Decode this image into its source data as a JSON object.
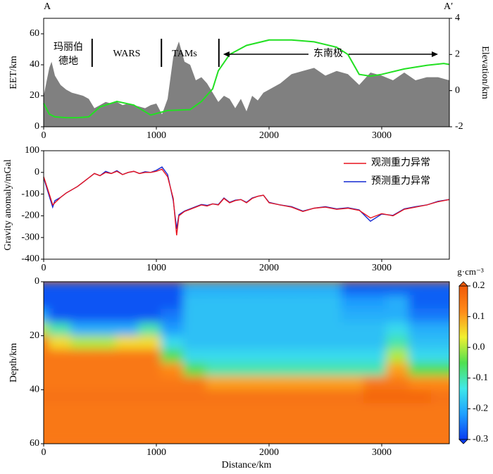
{
  "chart_data": [
    {
      "type": "area",
      "ylabel": "EET/km",
      "y2label": "Elevation/km",
      "end_labels": [
        "A",
        "A′"
      ],
      "regions": [
        "玛丽伯",
        "德地",
        "WARS",
        "TAMs",
        "东南极"
      ],
      "region_boundaries": [
        430,
        1045,
        1555
      ],
      "xlim": [
        0,
        3600
      ],
      "xticks": [
        0,
        1000,
        2000,
        3000
      ],
      "ylim": [
        0,
        70
      ],
      "yticks": [
        0,
        20,
        40,
        60
      ],
      "y2lim": [
        -2,
        4
      ],
      "y2ticks": [
        -2,
        0,
        2,
        4
      ],
      "series": [
        {
          "color": "#808080",
          "x": [
            0,
            50,
            70,
            100,
            150,
            200,
            250,
            300,
            350,
            400,
            450,
            500,
            550,
            600,
            650,
            700,
            750,
            800,
            850,
            900,
            950,
            1000,
            1050,
            1100,
            1150,
            1200,
            1250,
            1300,
            1350,
            1400,
            1450,
            1500,
            1550,
            1600,
            1650,
            1700,
            1750,
            1800,
            1850,
            1900,
            1950,
            2000,
            2100,
            2200,
            2300,
            2400,
            2500,
            2600,
            2700,
            2800,
            2900,
            3000,
            3100,
            3200,
            3300,
            3400,
            3500,
            3600
          ],
          "values": [
            20,
            38,
            42,
            33,
            27,
            24,
            22,
            21,
            20,
            18,
            12,
            14,
            16,
            15,
            16,
            14,
            15,
            14,
            13,
            12,
            14,
            15,
            8,
            18,
            45,
            55,
            42,
            40,
            30,
            32,
            28,
            22,
            16,
            20,
            18,
            12,
            18,
            10,
            20,
            17,
            22,
            24,
            28,
            34,
            36,
            38,
            33,
            36,
            34,
            27,
            35,
            33,
            30,
            35,
            30,
            32,
            32,
            30
          ]
        },
        {
          "type": "line",
          "axis": "y2",
          "color": "#22e022",
          "x": [
            0,
            50,
            100,
            200,
            300,
            400,
            500,
            650,
            800,
            950,
            1100,
            1300,
            1400,
            1500,
            1550,
            1650,
            1800,
            2000,
            2200,
            2400,
            2600,
            2700,
            2800,
            2900,
            3000,
            3200,
            3400,
            3550,
            3600
          ],
          "values": [
            -0.7,
            -1.3,
            -1.45,
            -1.5,
            -1.5,
            -1.45,
            -0.9,
            -0.6,
            -0.8,
            -1.35,
            -1.1,
            -1.05,
            -0.6,
            0.1,
            1.1,
            2.0,
            2.5,
            2.8,
            2.8,
            2.7,
            2.4,
            2.0,
            0.9,
            0.8,
            0.9,
            1.2,
            1.4,
            1.5,
            1.45
          ]
        }
      ]
    },
    {
      "type": "line",
      "ylabel": "Gravity anomaly/mGal",
      "xlim": [
        0,
        3600
      ],
      "xticks": [
        0,
        1000,
        2000,
        3000
      ],
      "ylim": [
        -400,
        100
      ],
      "yticks": [
        -400,
        -300,
        -200,
        -100,
        0,
        100
      ],
      "legend": "upper right",
      "x": [
        0,
        50,
        80,
        100,
        150,
        200,
        250,
        300,
        350,
        400,
        450,
        500,
        550,
        600,
        650,
        700,
        750,
        800,
        850,
        900,
        950,
        1000,
        1050,
        1100,
        1150,
        1180,
        1200,
        1250,
        1300,
        1350,
        1400,
        1450,
        1500,
        1550,
        1600,
        1650,
        1700,
        1750,
        1800,
        1850,
        1900,
        1950,
        2000,
        2100,
        2200,
        2300,
        2400,
        2500,
        2600,
        2700,
        2800,
        2900,
        3000,
        3100,
        3200,
        3300,
        3400,
        3500,
        3600
      ],
      "series": [
        {
          "name": "观测重力异常",
          "color": "#e8141e",
          "values": [
            -20,
            -100,
            -150,
            -140,
            -115,
            -95,
            -80,
            -65,
            -45,
            -25,
            -5,
            -15,
            0,
            -5,
            5,
            -10,
            0,
            5,
            -5,
            0,
            0,
            5,
            15,
            -20,
            -120,
            -290,
            -200,
            -180,
            -170,
            -160,
            -150,
            -155,
            -145,
            -150,
            -120,
            -140,
            -130,
            -125,
            -140,
            -120,
            -110,
            -105,
            -140,
            -150,
            -160,
            -180,
            -165,
            -160,
            -170,
            -165,
            -175,
            -210,
            -190,
            -200,
            -170,
            -160,
            -150,
            -135,
            -125
          ]
        },
        {
          "name": "预测重力异常",
          "color": "#1428d2",
          "values": [
            -25,
            -110,
            -160,
            -130,
            -115,
            -95,
            -80,
            -65,
            -45,
            -25,
            -5,
            -15,
            5,
            -5,
            8,
            -10,
            0,
            5,
            -5,
            3,
            0,
            10,
            25,
            -10,
            -130,
            -260,
            -195,
            -178,
            -168,
            -158,
            -148,
            -152,
            -145,
            -148,
            -118,
            -138,
            -128,
            -125,
            -138,
            -118,
            -110,
            -105,
            -138,
            -150,
            -158,
            -178,
            -165,
            -158,
            -168,
            -163,
            -173,
            -225,
            -192,
            -198,
            -168,
            -158,
            -150,
            -133,
            -125
          ]
        }
      ]
    },
    {
      "type": "heatmap",
      "xlabel": "Distance/km",
      "ylabel": "Depth/km",
      "xlim": [
        0,
        3600
      ],
      "xticks": [
        0,
        1000,
        2000,
        3000
      ],
      "ylim": [
        0,
        60
      ],
      "y_inverted": true,
      "yticks": [
        0,
        20,
        40,
        60
      ],
      "x": [
        0,
        200,
        400,
        600,
        800,
        1000,
        1200,
        1400,
        1600,
        1800,
        2000,
        2200,
        2400,
        2600,
        2800,
        3000,
        3200,
        3400,
        3600
      ],
      "y": [
        2.5,
        7.5,
        12.5,
        17.5,
        22.5,
        27.5,
        32.5,
        37.5,
        42.5,
        47.5,
        52.5,
        57.5
      ],
      "values": [
        [
          -0.28,
          -0.28,
          -0.28,
          -0.28,
          -0.28,
          -0.28,
          -0.28,
          -0.2,
          -0.2,
          -0.2,
          -0.2,
          -0.2,
          -0.2,
          -0.2,
          -0.27,
          -0.27,
          -0.27,
          -0.27,
          -0.27
        ],
        [
          -0.28,
          -0.28,
          -0.28,
          -0.28,
          -0.28,
          -0.28,
          -0.28,
          -0.18,
          -0.18,
          -0.18,
          -0.18,
          -0.18,
          -0.18,
          -0.18,
          -0.22,
          -0.22,
          -0.2,
          -0.27,
          -0.27
        ],
        [
          -0.2,
          -0.28,
          -0.28,
          -0.28,
          -0.28,
          -0.28,
          -0.25,
          -0.18,
          -0.18,
          -0.18,
          -0.18,
          -0.18,
          -0.18,
          -0.18,
          -0.2,
          -0.2,
          -0.2,
          -0.25,
          -0.25
        ],
        [
          0,
          -0.1,
          -0.2,
          -0.2,
          -0.2,
          -0.1,
          -0.22,
          -0.18,
          -0.18,
          -0.18,
          -0.18,
          -0.18,
          -0.18,
          -0.18,
          -0.18,
          -0.18,
          -0.15,
          -0.2,
          -0.2
        ],
        [
          0.18,
          0.05,
          0,
          0,
          0.05,
          0.05,
          -0.15,
          -0.18,
          -0.18,
          -0.18,
          -0.18,
          -0.18,
          -0.18,
          -0.18,
          -0.18,
          -0.18,
          -0.1,
          -0.18,
          -0.18
        ],
        [
          0.15,
          0.15,
          0.15,
          0.15,
          0.15,
          0.15,
          -0.05,
          -0.15,
          -0.15,
          -0.15,
          -0.15,
          -0.15,
          -0.15,
          -0.15,
          -0.15,
          -0.15,
          0,
          -0.15,
          -0.15
        ],
        [
          0.15,
          0.15,
          0.15,
          0.15,
          0.15,
          0.15,
          0.12,
          -0.05,
          -0.1,
          -0.1,
          -0.1,
          -0.1,
          -0.1,
          -0.1,
          -0.1,
          -0.1,
          0.1,
          -0.05,
          -0.05
        ],
        [
          0.15,
          0.15,
          0.15,
          0.15,
          0.15,
          0.15,
          0.15,
          0.15,
          0.1,
          0.1,
          0.1,
          0.1,
          0.1,
          0.1,
          0.1,
          0.15,
          0.15,
          0.12,
          0.12
        ],
        [
          0.16,
          0.16,
          0.16,
          0.16,
          0.16,
          0.16,
          0.16,
          0.16,
          0.16,
          0.16,
          0.16,
          0.16,
          0.16,
          0.16,
          0.16,
          0.18,
          0.18,
          0.18,
          0.16
        ],
        [
          0.15,
          0.15,
          0.15,
          0.15,
          0.15,
          0.15,
          0.15,
          0.15,
          0.15,
          0.15,
          0.15,
          0.15,
          0.15,
          0.15,
          0.15,
          0.15,
          0.15,
          0.15,
          0.15
        ],
        [
          0.15,
          0.15,
          0.15,
          0.15,
          0.15,
          0.15,
          0.15,
          0.15,
          0.15,
          0.15,
          0.15,
          0.15,
          0.15,
          0.15,
          0.15,
          0.15,
          0.15,
          0.15,
          0.15
        ],
        [
          0.15,
          0.15,
          0.15,
          0.15,
          0.15,
          0.15,
          0.15,
          0.15,
          0.15,
          0.15,
          0.15,
          0.15,
          0.15,
          0.15,
          0.15,
          0.15,
          0.15,
          0.15,
          0.15
        ]
      ],
      "clim": [
        -0.3,
        0.2
      ],
      "cticks": [
        -0.3,
        -0.2,
        -0.1,
        {
          "value": 0,
          "label": "0.0"
        },
        0.1,
        0.2
      ],
      "colorbar_label": "g·cm⁻³",
      "colorscale": [
        "#0a3cf0",
        "#1ea0ff",
        "#40e8e8",
        "#50e050",
        "#f0f030",
        "#ff8c1a",
        "#f05a0a"
      ]
    }
  ]
}
